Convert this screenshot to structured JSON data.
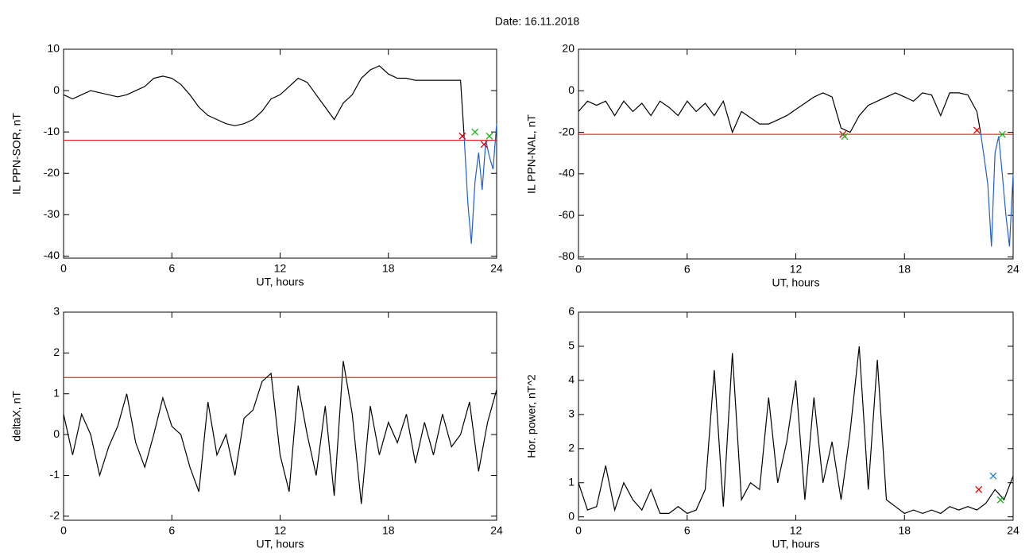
{
  "title": "Date:  16.11.2018",
  "chart_data": [
    {
      "type": "line",
      "ylabel": "IL PPN-SOR, nT",
      "xlabel": "UT, hours",
      "xlim": [
        0,
        24
      ],
      "xticks": [
        0,
        6,
        12,
        18,
        24
      ],
      "ylim": [
        -40.5,
        10
      ],
      "yticks": [
        -40,
        -30,
        -20,
        -10,
        0,
        10
      ],
      "series": [
        {
          "color": "#000000",
          "x": [
            0,
            0.5,
            1,
            1.5,
            2,
            2.5,
            3,
            3.5,
            4,
            4.5,
            5,
            5.5,
            6,
            6.5,
            7,
            7.5,
            8,
            8.5,
            9,
            9.5,
            10,
            10.5,
            11,
            11.5,
            12,
            12.5,
            13,
            13.5,
            14,
            14.5,
            15,
            15.5,
            16,
            16.5,
            17,
            17.5,
            18,
            18.5,
            19,
            19.5,
            20,
            20.5,
            21,
            21.5,
            22,
            22.2
          ],
          "values": [
            -1,
            -2,
            -1,
            0,
            -0.5,
            -1,
            -1.5,
            -1,
            0,
            1,
            3,
            3.5,
            3,
            1.5,
            -1,
            -4,
            -6,
            -7,
            -8,
            -8.5,
            -8,
            -7,
            -5,
            -2,
            -1,
            1,
            3,
            2,
            -1,
            -4,
            -7,
            -3,
            -1,
            3,
            5,
            6,
            4,
            3,
            3,
            2.5,
            2.5,
            2.5,
            2.5,
            2.5,
            2.5,
            -11
          ]
        },
        {
          "color": "#1f5fd0",
          "x": [
            22.2,
            22.4,
            22.6,
            22.8,
            23,
            23.2,
            23.4,
            23.6,
            23.8,
            24
          ],
          "values": [
            -11,
            -27,
            -37,
            -22,
            -15,
            -24,
            -12,
            -16,
            -19,
            -8
          ]
        }
      ],
      "hlines": [
        {
          "value": -12,
          "color": "#e00000"
        }
      ],
      "markers": [
        {
          "color": "#e00000",
          "x": [
            22.1,
            23.3
          ],
          "values": [
            -11,
            -13
          ]
        },
        {
          "color": "#20b020",
          "x": [
            22.8,
            23.6
          ],
          "values": [
            -10,
            -11
          ]
        }
      ]
    },
    {
      "type": "line",
      "ylabel": "IL PPN-NAL, nT",
      "xlabel": "UT, hours",
      "xlim": [
        0,
        24
      ],
      "xticks": [
        0,
        6,
        12,
        18,
        24
      ],
      "ylim": [
        -81,
        20
      ],
      "yticks": [
        -80,
        -60,
        -40,
        -20,
        0,
        20
      ],
      "series": [
        {
          "color": "#000000",
          "x": [
            0,
            0.5,
            1,
            1.5,
            2,
            2.5,
            3,
            3.5,
            4,
            4.5,
            5,
            5.5,
            6,
            6.5,
            7,
            7.5,
            8,
            8.5,
            9,
            9.5,
            10,
            10.5,
            11,
            11.5,
            12,
            12.5,
            13,
            13.5,
            14,
            14.5,
            15,
            15.5,
            16,
            16.5,
            17,
            17.5,
            18,
            18.5,
            19,
            19.5,
            20,
            20.5,
            21,
            21.5,
            22,
            22.2
          ],
          "values": [
            -10,
            -5,
            -7,
            -5,
            -12,
            -5,
            -10,
            -6,
            -12,
            -5,
            -8,
            -12,
            -5,
            -10,
            -6,
            -12,
            -5,
            -20,
            -10,
            -13,
            -16,
            -16,
            -14,
            -12,
            -9,
            -6,
            -3,
            -1,
            -3,
            -18,
            -20,
            -12,
            -7,
            -5,
            -3,
            -1,
            -3,
            -5,
            -1,
            -2,
            -12,
            -1,
            -1,
            -2,
            -10,
            -20
          ]
        },
        {
          "color": "#1f5fd0",
          "x": [
            22.2,
            22.4,
            22.6,
            22.8,
            23,
            23.2,
            23.4,
            23.6,
            23.8,
            24
          ],
          "values": [
            -20,
            -32,
            -45,
            -75,
            -30,
            -22,
            -40,
            -60,
            -75,
            -40
          ]
        }
      ],
      "hlines": [
        {
          "value": -21,
          "color": "#e00000"
        }
      ],
      "markers": [
        {
          "color": "#e00000",
          "x": [
            14.6,
            22.0
          ],
          "values": [
            -21,
            -19
          ]
        },
        {
          "color": "#20b020",
          "x": [
            14.7,
            23.4
          ],
          "values": [
            -22,
            -21
          ]
        }
      ]
    },
    {
      "type": "line",
      "ylabel": "deltaX, nT",
      "xlabel": "UT, hours",
      "xlim": [
        0,
        24
      ],
      "xticks": [
        0,
        6,
        12,
        18,
        24
      ],
      "ylim": [
        -2.1,
        3
      ],
      "yticks": [
        -2,
        -1,
        0,
        1,
        2,
        3
      ],
      "series": [
        {
          "color": "#000000",
          "x": [
            0,
            0.5,
            1,
            1.5,
            2,
            2.5,
            3,
            3.5,
            4,
            4.5,
            5,
            5.5,
            6,
            6.5,
            7,
            7.5,
            8,
            8.5,
            9,
            9.5,
            10,
            10.5,
            11,
            11.5,
            12,
            12.5,
            13,
            13.5,
            14,
            14.5,
            15,
            15.5,
            16,
            16.5,
            17,
            17.5,
            18,
            18.5,
            19,
            19.5,
            20,
            20.5,
            21,
            21.5,
            22,
            22.5,
            23,
            23.5,
            24
          ],
          "values": [
            0.5,
            -0.5,
            0.5,
            0,
            -1,
            -0.3,
            0.2,
            1,
            -0.2,
            -0.8,
            0,
            0.9,
            0.2,
            0,
            -0.8,
            -1.4,
            0.8,
            -0.5,
            0,
            -1,
            0.4,
            0.6,
            1.3,
            1.5,
            -0.5,
            -1.4,
            1.2,
            0,
            -1,
            0.7,
            -1.5,
            1.8,
            0.5,
            -1.7,
            0.7,
            -0.5,
            0.3,
            -0.2,
            0.5,
            -0.7,
            0.3,
            -0.5,
            0.5,
            -0.3,
            0,
            0.8,
            -0.9,
            0.3,
            1.1
          ]
        }
      ],
      "hlines": [
        {
          "value": 1.4,
          "color": "#e00000"
        }
      ]
    },
    {
      "type": "line",
      "ylabel": "Hor. power, nT^2",
      "xlabel": "UT, hours",
      "xlim": [
        0,
        24
      ],
      "xticks": [
        0,
        6,
        12,
        18,
        24
      ],
      "ylim": [
        -0.1,
        6
      ],
      "yticks": [
        0,
        1,
        2,
        3,
        4,
        5,
        6
      ],
      "series": [
        {
          "color": "#000000",
          "x": [
            0,
            0.5,
            1,
            1.5,
            2,
            2.5,
            3,
            3.5,
            4,
            4.5,
            5,
            5.5,
            6,
            6.5,
            7,
            7.5,
            8,
            8.5,
            9,
            9.5,
            10,
            10.5,
            11,
            11.5,
            12,
            12.5,
            13,
            13.5,
            14,
            14.5,
            15,
            15.5,
            16,
            16.5,
            17,
            17.5,
            18,
            18.5,
            19,
            19.5,
            20,
            20.5,
            21,
            21.5,
            22,
            22.5,
            23,
            23.5,
            24
          ],
          "values": [
            1,
            0.2,
            0.3,
            1.5,
            0.2,
            1,
            0.5,
            0.2,
            0.8,
            0.1,
            0.1,
            0.3,
            0.1,
            0.2,
            0.8,
            4.3,
            0.3,
            4.8,
            0.5,
            1,
            0.8,
            3.5,
            1,
            2.2,
            4,
            0.5,
            3.5,
            1,
            2.2,
            0.5,
            2.5,
            5,
            0.8,
            4.6,
            0.5,
            0.3,
            0.1,
            0.2,
            0.1,
            0.2,
            0.1,
            0.3,
            0.2,
            0.3,
            0.2,
            0.4,
            0.8,
            0.5,
            1.2
          ]
        }
      ],
      "markers": [
        {
          "color": "#e00000",
          "x": [
            22.1
          ],
          "values": [
            0.8
          ]
        },
        {
          "color": "#1f7fe0",
          "x": [
            22.9
          ],
          "values": [
            1.2
          ]
        },
        {
          "color": "#20b020",
          "x": [
            23.3
          ],
          "values": [
            0.5
          ]
        }
      ]
    }
  ]
}
